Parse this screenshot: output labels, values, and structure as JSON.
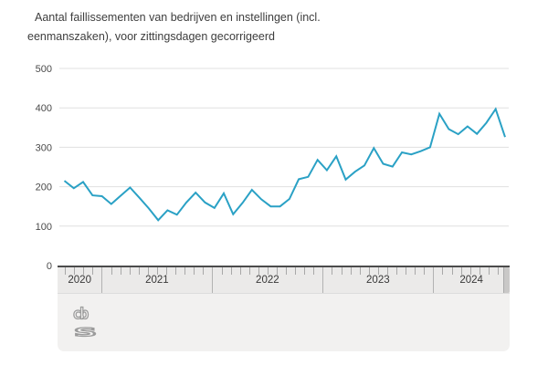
{
  "title": {
    "lines": [
      "Aantal faillissementen van bedrijven en instellingen (incl.",
      "eenmanszaken), voor zittingsdagen gecorrigeerd"
    ]
  },
  "y_axis": {
    "unit": "aantal",
    "max": 500
  },
  "timeline": {
    "years": [
      {
        "label": "2020",
        "months": 4.8
      },
      {
        "label": "2021",
        "months": 12
      },
      {
        "label": "2022",
        "months": 12
      },
      {
        "label": "2023",
        "months": 12
      },
      {
        "label": "2024",
        "months": 8.3
      }
    ]
  },
  "logo": {
    "name": "cbs-logo",
    "text_top": "cb",
    "text_bottom": "s"
  },
  "colors": {
    "line": "#2aa1c5",
    "grid": "#e0e0e0",
    "axis_text": "#4a4a4a",
    "panel": "#f2f1f0",
    "band_border": "#4b4b4b",
    "tick": "#a8a8a8",
    "separator": "#b2b2b2",
    "title_text": "#3d3d3d",
    "logo_gray": "#9b9b9b"
  },
  "chart_data": {
    "type": "line",
    "title": "Aantal faillissementen van bedrijven en instellingen (incl. eenmanszaken), voor zittingsdagen gecorrigeerd",
    "x": [
      "2020-09",
      "2020-10",
      "2020-11",
      "2020-12",
      "2021-01",
      "2021-02",
      "2021-03",
      "2021-04",
      "2021-05",
      "2021-06",
      "2021-07",
      "2021-08",
      "2021-09",
      "2021-10",
      "2021-11",
      "2021-12",
      "2022-01",
      "2022-02",
      "2022-03",
      "2022-04",
      "2022-05",
      "2022-06",
      "2022-07",
      "2022-08",
      "2022-09",
      "2022-10",
      "2022-11",
      "2022-12",
      "2023-01",
      "2023-02",
      "2023-03",
      "2023-04",
      "2023-05",
      "2023-06",
      "2023-07",
      "2023-08",
      "2023-09",
      "2023-10",
      "2023-11",
      "2023-12",
      "2024-01",
      "2024-02",
      "2024-03",
      "2024-04",
      "2024-05",
      "2024-06",
      "2024-07",
      "2024-08"
    ],
    "values": [
      215,
      196,
      212,
      178,
      176,
      156,
      177,
      198,
      172,
      145,
      115,
      140,
      129,
      160,
      185,
      160,
      146,
      183,
      130,
      159,
      192,
      168,
      150,
      150,
      169,
      219,
      225,
      268,
      242,
      277,
      218,
      238,
      254,
      298,
      258,
      251,
      287,
      282,
      290,
      300,
      385,
      346,
      333,
      353,
      334,
      362,
      397,
      326
    ],
    "xtick_labels": [
      "2020",
      "2021",
      "2022",
      "2023",
      "2024"
    ],
    "ylim": [
      0,
      500
    ],
    "yticks": [
      0,
      100,
      200,
      300,
      400,
      500
    ],
    "grid": true,
    "legend": false
  }
}
